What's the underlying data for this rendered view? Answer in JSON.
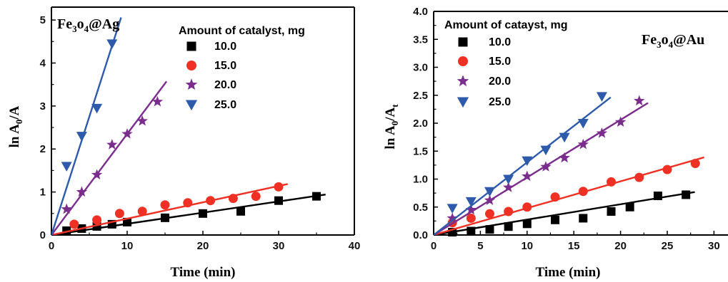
{
  "chart_data": [
    {
      "type": "scatter",
      "label_main": "Fe",
      "label_sub1": "3",
      "label_mid": "o",
      "label_sub2": "4",
      "label_end": "@Ag",
      "xlabel": "Time (min)",
      "ylabel_main": "ln A",
      "ylabel_sub": "0",
      "ylabel_end": "/A",
      "xlim": [
        0,
        40
      ],
      "ylim": [
        0,
        5.3
      ],
      "xticks": [
        0,
        10,
        20,
        30,
        40
      ],
      "yticks": [
        0,
        1,
        2,
        3,
        4,
        5
      ],
      "legend_title": "Amount of catalyst, mg",
      "series": [
        {
          "name": "10.0",
          "marker": "square",
          "color": "#000000",
          "x": [
            2,
            4,
            6,
            8,
            10,
            15,
            20,
            25,
            30,
            35
          ],
          "y": [
            0.1,
            0.15,
            0.2,
            0.25,
            0.3,
            0.4,
            0.5,
            0.55,
            0.8,
            0.9
          ],
          "fit_slope": 0.026
        },
        {
          "name": "15.0",
          "marker": "circle",
          "color": "#ee3124",
          "x": [
            3,
            6,
            9,
            12,
            15,
            18,
            21,
            24,
            27,
            30
          ],
          "y": [
            0.25,
            0.35,
            0.5,
            0.55,
            0.7,
            0.75,
            0.8,
            0.85,
            0.9,
            1.12
          ],
          "fit_slope": 0.038
        },
        {
          "name": "20.0",
          "marker": "star",
          "color": "#7b2d8e",
          "x": [
            2,
            4,
            6,
            8,
            10,
            12,
            14
          ],
          "y": [
            0.6,
            1.0,
            1.4,
            2.1,
            2.35,
            2.65,
            3.1
          ],
          "fit_slope": 0.235
        },
        {
          "name": "25.0",
          "marker": "triangle-down",
          "color": "#2e5aac",
          "x": [
            2,
            4,
            6,
            8
          ],
          "y": [
            1.6,
            2.3,
            2.95,
            4.45
          ],
          "fit_slope": 0.55
        }
      ]
    },
    {
      "type": "scatter",
      "label_main": "Fe",
      "label_sub1": "3",
      "label_mid": "o",
      "label_sub2": "4",
      "label_end": "@Au",
      "xlabel": "Time (min)",
      "ylabel_main": "ln A",
      "ylabel_sub": "0",
      "ylabel_end": "/A",
      "ylabel_sub2": "t",
      "xlim": [
        0,
        31.5
      ],
      "ylim": [
        0,
        4.0
      ],
      "xticks": [
        0,
        5,
        10,
        15,
        20,
        25,
        30
      ],
      "yticks": [
        0.0,
        0.5,
        1.0,
        1.5,
        2.0,
        2.5,
        3.0,
        3.5,
        4.0
      ],
      "yticks_labels": [
        "0.0",
        "0.5",
        "1.0",
        "1.5",
        "2.0",
        "2.5",
        "3.0",
        "3.5",
        "4.0"
      ],
      "legend_title": "Amount of catayst, mg",
      "series": [
        {
          "name": "10.0",
          "marker": "square",
          "color": "#000000",
          "x": [
            2,
            4,
            6,
            8,
            10,
            13,
            16,
            19,
            21,
            24,
            27
          ],
          "y": [
            0.05,
            0.07,
            0.1,
            0.15,
            0.2,
            0.27,
            0.3,
            0.42,
            0.5,
            0.7,
            0.72
          ],
          "fit_slope": 0.0275
        },
        {
          "name": "15.0",
          "marker": "circle",
          "color": "#ee3124",
          "x": [
            2,
            4,
            6,
            8,
            10,
            13,
            16,
            19,
            22,
            25,
            28
          ],
          "y": [
            0.22,
            0.3,
            0.38,
            0.42,
            0.5,
            0.68,
            0.78,
            0.95,
            1.03,
            1.17,
            1.28
          ],
          "fit_slope": 0.048
        },
        {
          "name": "20.0",
          "marker": "star",
          "color": "#7b2d8e",
          "x": [
            2,
            4,
            6,
            8,
            10,
            12,
            14,
            16,
            18,
            20,
            22
          ],
          "y": [
            0.3,
            0.45,
            0.62,
            0.85,
            1.05,
            1.22,
            1.38,
            1.62,
            1.82,
            2.02,
            2.4
          ],
          "fit_slope": 0.103
        },
        {
          "name": "25.0",
          "marker": "triangle-down",
          "color": "#2e5aac",
          "x": [
            2,
            4,
            6,
            8,
            10,
            12,
            14,
            16,
            18
          ],
          "y": [
            0.48,
            0.6,
            0.78,
            1.0,
            1.33,
            1.52,
            1.75,
            2.0,
            2.48
          ],
          "fit_slope": 0.13
        }
      ]
    }
  ]
}
